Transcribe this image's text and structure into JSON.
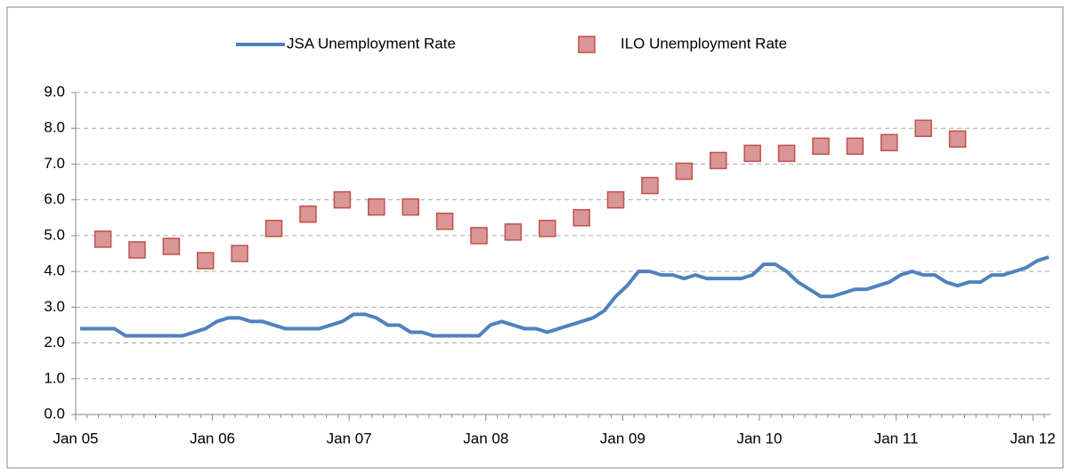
{
  "chart_data": {
    "type": "line",
    "legend_position": "top",
    "grid": true,
    "categories": [
      "Jan 05",
      null,
      null,
      null,
      null,
      null,
      null,
      null,
      null,
      null,
      null,
      null,
      "Jan 06",
      null,
      null,
      null,
      null,
      null,
      null,
      null,
      null,
      null,
      null,
      null,
      "Jan 07",
      null,
      null,
      null,
      null,
      null,
      null,
      null,
      null,
      null,
      null,
      null,
      "Jan 08",
      null,
      null,
      null,
      null,
      null,
      null,
      null,
      null,
      null,
      null,
      null,
      "Jan 09",
      null,
      null,
      null,
      null,
      null,
      null,
      null,
      null,
      null,
      null,
      null,
      "Jan 10",
      null,
      null,
      null,
      null,
      null,
      null,
      null,
      null,
      null,
      null,
      null,
      "Jan 11",
      null,
      null,
      null,
      null,
      null,
      null,
      null,
      null,
      null,
      null,
      null,
      "Jan 12",
      null
    ],
    "ylim": [
      0,
      9
    ],
    "yticks": [
      {
        "value": 0,
        "label": "0.0"
      },
      {
        "value": 1,
        "label": "1.0"
      },
      {
        "value": 2,
        "label": "2.0"
      },
      {
        "value": 3,
        "label": "3.0"
      },
      {
        "value": 4,
        "label": "4.0"
      },
      {
        "value": 5,
        "label": "5.0"
      },
      {
        "value": 6,
        "label": "6.0"
      },
      {
        "value": 7,
        "label": "7.0"
      },
      {
        "value": 8,
        "label": "8.0"
      },
      {
        "value": 9,
        "label": "9.0"
      }
    ],
    "series": [
      {
        "name": "JSA Unemployment Rate",
        "color": "#4f81bd",
        "style": "line",
        "values": [
          2.4,
          2.4,
          2.4,
          2.4,
          2.2,
          2.2,
          2.2,
          2.2,
          2.2,
          2.2,
          2.3,
          2.4,
          2.6,
          2.7,
          2.7,
          2.6,
          2.6,
          2.5,
          2.4,
          2.4,
          2.4,
          2.4,
          2.5,
          2.6,
          2.8,
          2.8,
          2.7,
          2.5,
          2.5,
          2.3,
          2.3,
          2.2,
          2.2,
          2.2,
          2.2,
          2.2,
          2.5,
          2.6,
          2.5,
          2.4,
          2.4,
          2.3,
          2.4,
          2.5,
          2.6,
          2.7,
          2.9,
          3.3,
          3.6,
          4.0,
          4.0,
          3.9,
          3.9,
          3.8,
          3.9,
          3.8,
          3.8,
          3.8,
          3.8,
          3.9,
          4.2,
          4.2,
          4.0,
          3.7,
          3.5,
          3.3,
          3.3,
          3.4,
          3.5,
          3.5,
          3.6,
          3.7,
          3.9,
          4.0,
          3.9,
          3.9,
          3.7,
          3.6,
          3.7,
          3.7,
          3.9,
          3.9,
          4.0,
          4.1,
          4.3,
          4.4
        ]
      },
      {
        "name": "ILO Unemployment Rate",
        "color": "#d99694",
        "style": "marker",
        "values": [
          null,
          null,
          4.9,
          null,
          null,
          4.6,
          null,
          null,
          4.7,
          null,
          null,
          4.3,
          null,
          null,
          4.5,
          null,
          null,
          5.2,
          null,
          null,
          5.6,
          null,
          null,
          6.0,
          null,
          null,
          5.8,
          null,
          null,
          5.8,
          null,
          null,
          5.4,
          null,
          null,
          5.0,
          null,
          null,
          5.1,
          null,
          null,
          5.2,
          null,
          null,
          5.5,
          null,
          null,
          6.0,
          null,
          null,
          6.4,
          null,
          null,
          6.8,
          null,
          null,
          7.1,
          null,
          null,
          7.3,
          null,
          null,
          7.3,
          null,
          null,
          7.5,
          null,
          null,
          7.5,
          null,
          null,
          7.6,
          null,
          null,
          8.0,
          null,
          null,
          7.7,
          null,
          null,
          null,
          null,
          null,
          null,
          null,
          null
        ]
      }
    ]
  }
}
